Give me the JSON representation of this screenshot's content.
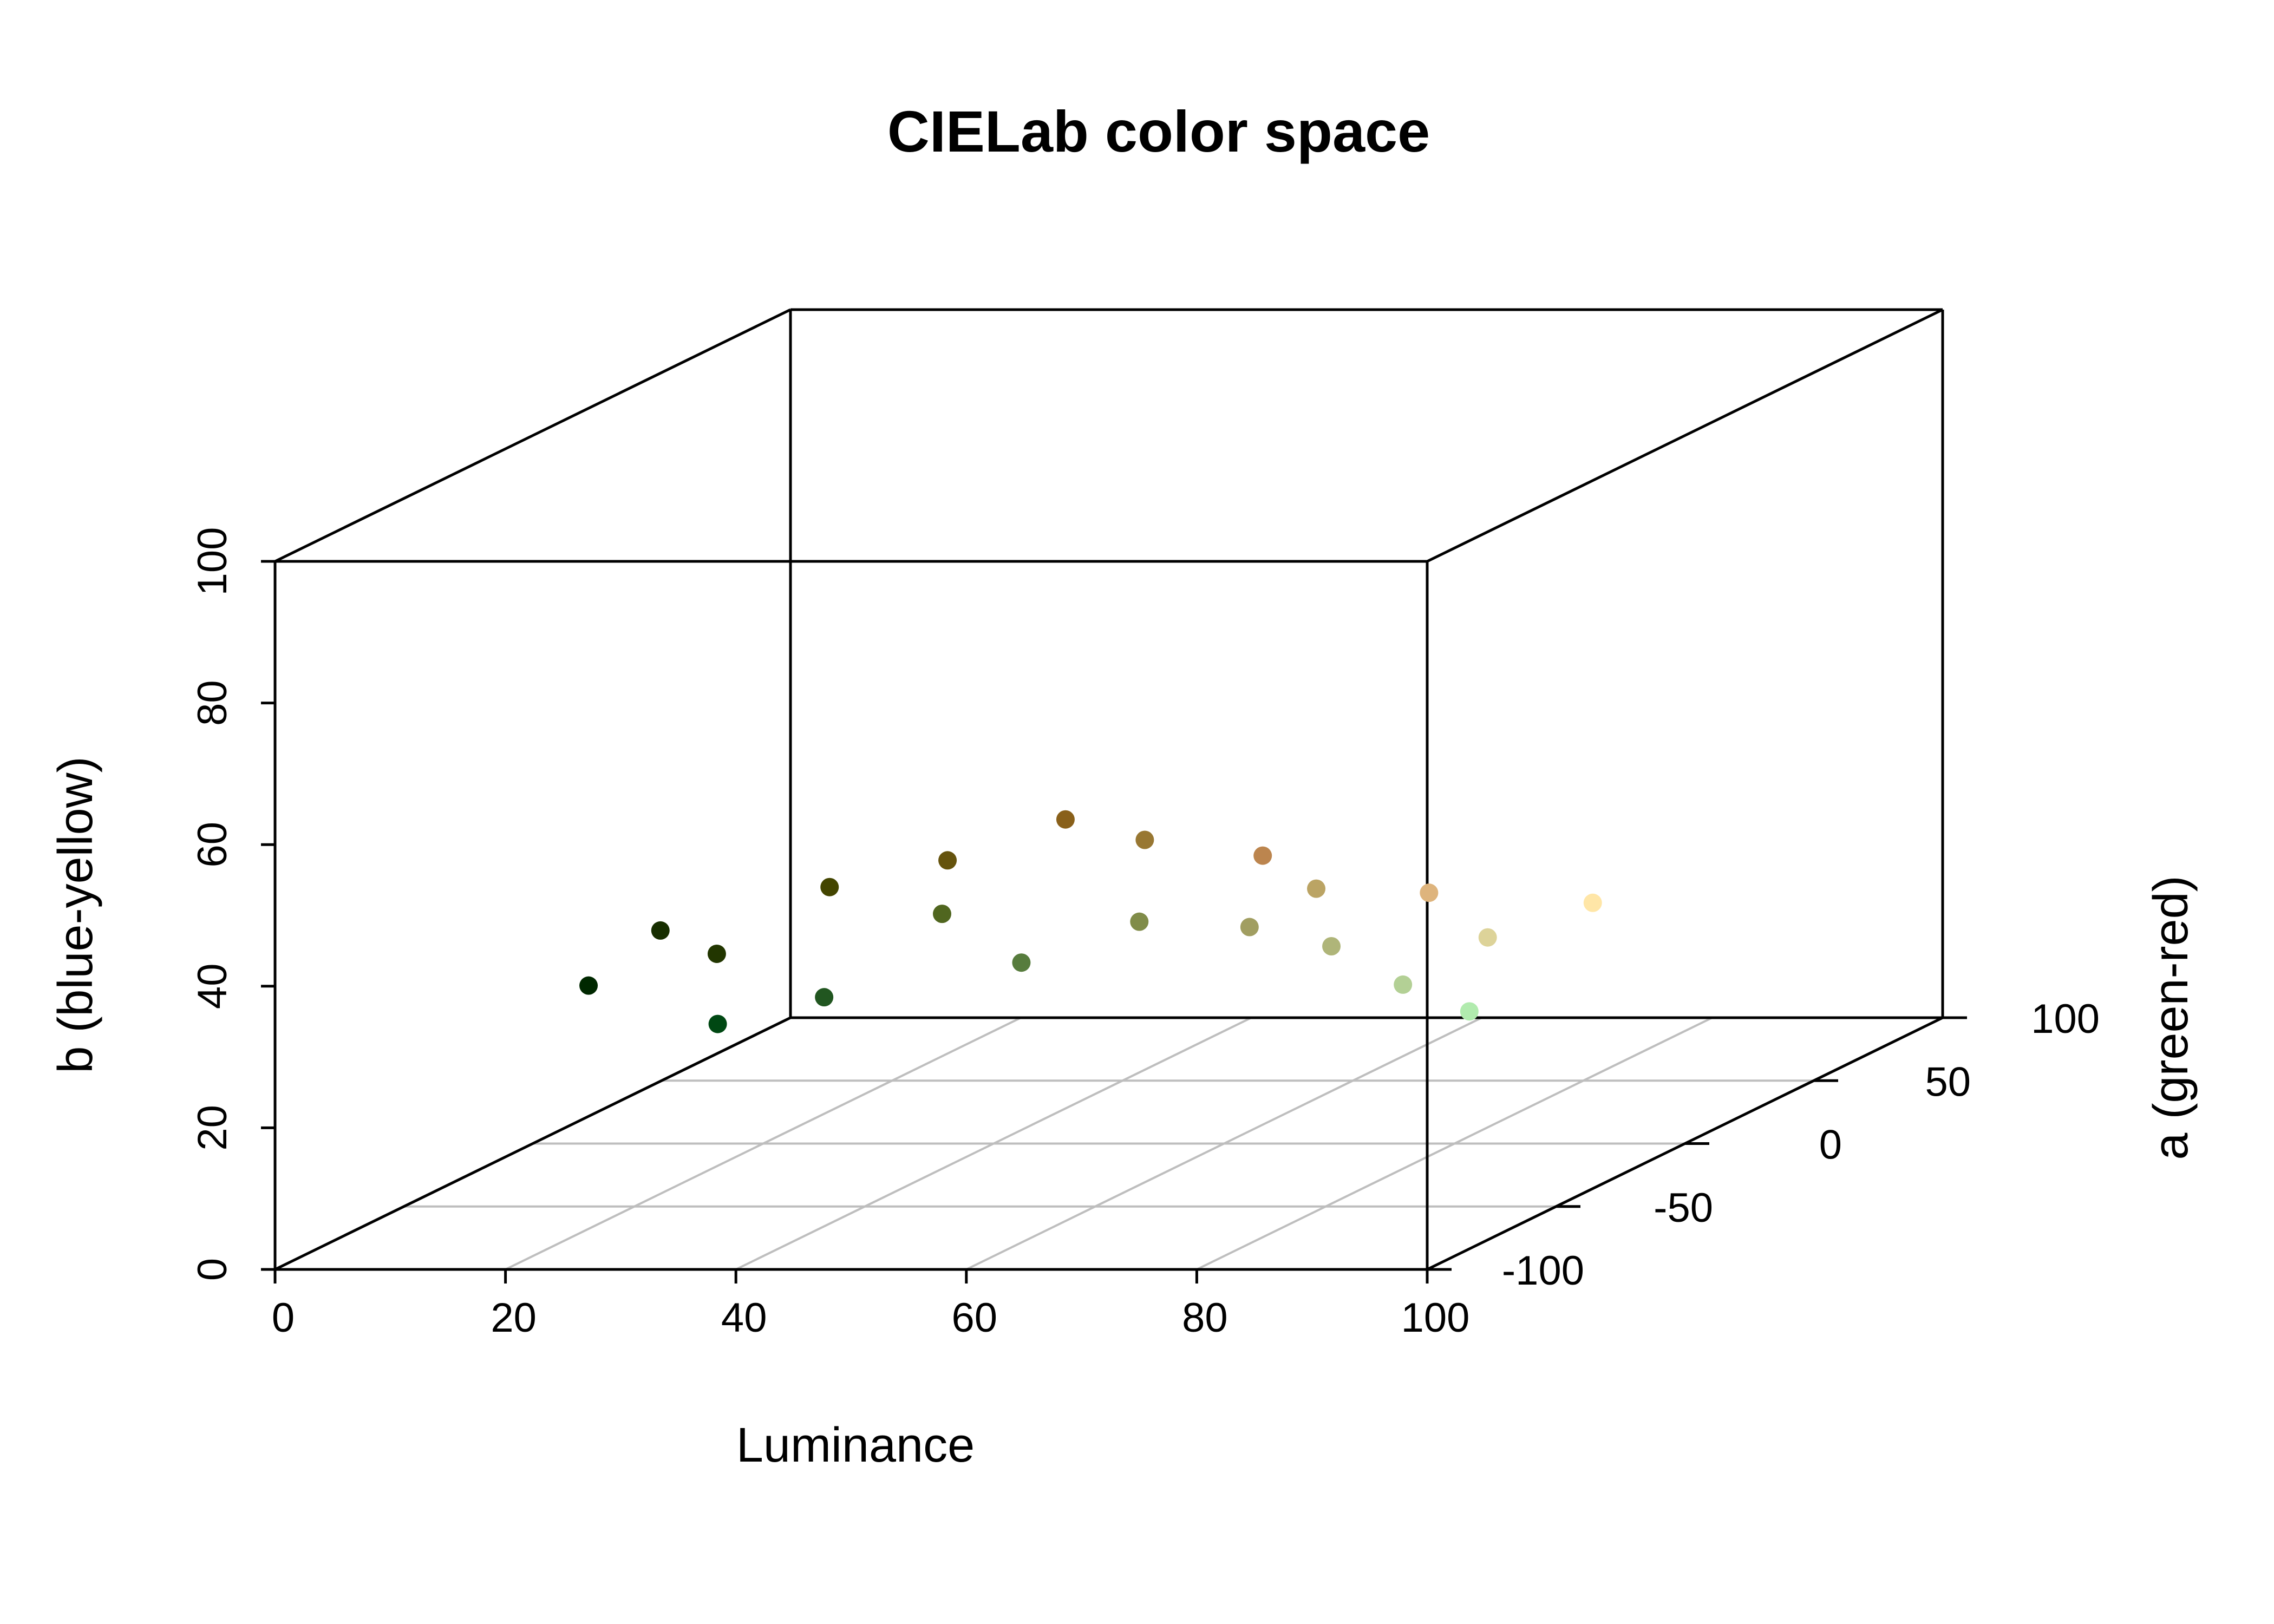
{
  "chart_data": {
    "type": "scatter",
    "projection": "3d",
    "title": "CIELab color space",
    "xlabel": "Luminance",
    "ylabel": "a (green-red)",
    "zlabel": "b (blue-yellow)",
    "xlim": [
      0,
      100
    ],
    "ylim": [
      -100,
      100
    ],
    "zlim": [
      0,
      100
    ],
    "x_ticks": [
      "0",
      "20",
      "40",
      "60",
      "80",
      "100"
    ],
    "y_ticks": [
      "-100",
      "-50",
      "0",
      "50",
      "100"
    ],
    "z_ticks": [
      "0",
      "20",
      "40",
      "60",
      "80",
      "100"
    ],
    "grid": true,
    "legend": "none",
    "point_color": "CIELab color of each point",
    "series": [
      {
        "points_approx": [
          {
            "L": 12,
            "a": -32,
            "b": 28
          },
          {
            "L": 16,
            "a": -22,
            "b": 34
          },
          {
            "L": 20,
            "a": -18,
            "b": 30
          },
          {
            "L": 25,
            "a": -40,
            "b": 24
          },
          {
            "L": 28,
            "a": -10,
            "b": 38
          },
          {
            "L": 32,
            "a": -30,
            "b": 26
          },
          {
            "L": 36,
            "a": 0,
            "b": 40
          },
          {
            "L": 40,
            "a": -20,
            "b": 36
          },
          {
            "L": 44,
            "a": 10,
            "b": 44
          },
          {
            "L": 48,
            "a": -25,
            "b": 30
          },
          {
            "L": 52,
            "a": 5,
            "b": 42
          },
          {
            "L": 56,
            "a": -15,
            "b": 34
          },
          {
            "L": 60,
            "a": 15,
            "b": 38
          },
          {
            "L": 64,
            "a": -8,
            "b": 32
          },
          {
            "L": 68,
            "a": 0,
            "b": 36
          },
          {
            "L": 72,
            "a": -12,
            "b": 30
          },
          {
            "L": 76,
            "a": 8,
            "b": 34
          },
          {
            "L": 80,
            "a": -20,
            "b": 26
          },
          {
            "L": 84,
            "a": -5,
            "b": 30
          },
          {
            "L": 88,
            "a": -30,
            "b": 24
          },
          {
            "L": 92,
            "a": 0,
            "b": 34
          }
        ]
      }
    ]
  }
}
